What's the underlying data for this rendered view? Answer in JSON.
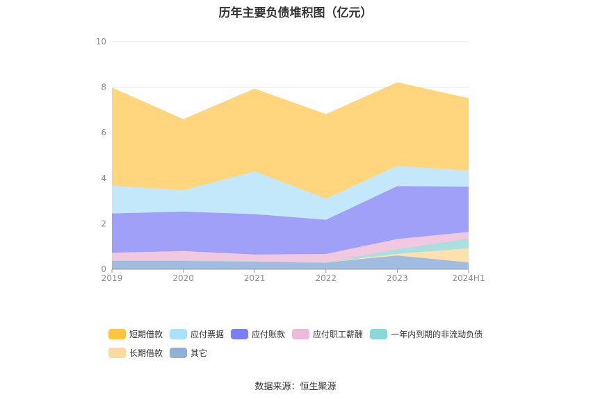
{
  "title": "历年主要负债堆积图（亿元）",
  "source": "数据来源：恒生聚源",
  "chart_data": {
    "type": "area",
    "stacked": true,
    "title": "历年主要负债堆积图（亿元）",
    "categories": [
      "2019",
      "2020",
      "2021",
      "2022",
      "2023",
      "2024H1"
    ],
    "ylim": [
      0,
      10
    ],
    "yticks": [
      "0",
      "2",
      "4",
      "6",
      "8",
      "10"
    ],
    "grid": true,
    "legend_position": "bottom",
    "series": [
      {
        "name": "其它",
        "color": "#a0bce0",
        "legend_color": "#90b0d8",
        "values": [
          0.38,
          0.38,
          0.35,
          0.3,
          0.6,
          0.3
        ]
      },
      {
        "name": "长期借款",
        "color": "#fde0b0",
        "legend_color": "#fdd9a0",
        "values": [
          0,
          0,
          0,
          0,
          0.08,
          0.62
        ]
      },
      {
        "name": "一年内到期的非流动负债",
        "color": "#a8e0e0",
        "legend_color": "#88d8d8",
        "values": [
          0,
          0,
          0,
          0,
          0.2,
          0.42
        ]
      },
      {
        "name": "应付职工薪酬",
        "color": "#f0c8e0",
        "legend_color": "#ecbbdb",
        "values": [
          0.35,
          0.42,
          0.3,
          0.37,
          0.45,
          0.3
        ]
      },
      {
        "name": "应付账款",
        "color": "#a0a0f8",
        "legend_color": "#7b7ff3",
        "values": [
          1.72,
          1.73,
          1.77,
          1.5,
          2.32,
          1.99
        ]
      },
      {
        "name": "应付票据",
        "color": "#c4e8fb",
        "legend_color": "#a8e2fb",
        "values": [
          1.22,
          0.95,
          1.88,
          0.93,
          0.9,
          0.7
        ]
      },
      {
        "name": "短期借款",
        "color": "#ffd67e",
        "legend_color": "#ffc540",
        "values": [
          4.3,
          3.1,
          3.62,
          3.7,
          3.65,
          3.17
        ]
      }
    ],
    "legend_order": [
      "短期借款",
      "应付票据",
      "应付账款",
      "应付职工薪酬",
      "一年内到期的非流动负债",
      "长期借款",
      "其它"
    ]
  }
}
